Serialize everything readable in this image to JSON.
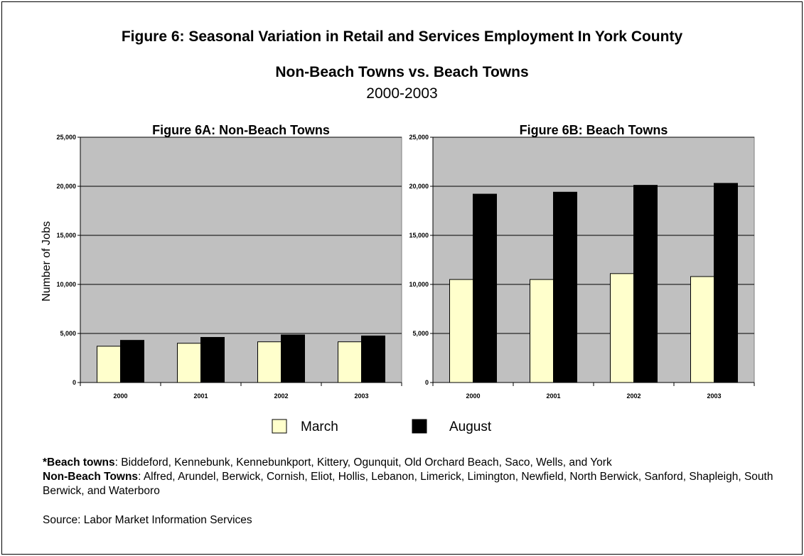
{
  "figure": {
    "title": "Figure 6:  Seasonal Variation in Retail and Services Employment In York County",
    "subtitle": "Non-Beach Towns vs. Beach Towns",
    "years": "2000-2003"
  },
  "colors": {
    "march": "#FFFFCC",
    "august": "#000000",
    "plot_bg": "#C0C0C0",
    "gridline": "#000000"
  },
  "legend": {
    "placement": "bottom-center",
    "march_label": "March",
    "august_label": "August"
  },
  "chart_data": [
    {
      "type": "bar",
      "title": "Figure 6A:  Non-Beach Towns",
      "ylabel": "Number of Jobs",
      "xlabel": "",
      "categories": [
        "2000",
        "2001",
        "2002",
        "2003"
      ],
      "ylim": [
        0,
        25000
      ],
      "yticks": [
        "0",
        "5,000",
        "10,000",
        "15,000",
        "20,000",
        "25,000"
      ],
      "grid": true,
      "series": [
        {
          "name": "March",
          "values": [
            3700,
            4000,
            4150,
            4150
          ]
        },
        {
          "name": "August",
          "values": [
            4300,
            4600,
            4850,
            4750
          ]
        }
      ]
    },
    {
      "type": "bar",
      "title": "Figure 6B:  Beach Towns",
      "ylabel": "",
      "xlabel": "",
      "categories": [
        "2000",
        "2001",
        "2002",
        "2003"
      ],
      "ylim": [
        0,
        25000
      ],
      "yticks": [
        "0",
        "5,000",
        "10,000",
        "15,000",
        "20,000",
        "25,000"
      ],
      "grid": true,
      "series": [
        {
          "name": "March",
          "values": [
            10500,
            10500,
            11100,
            10800
          ]
        },
        {
          "name": "August",
          "values": [
            19200,
            19400,
            20100,
            20300
          ]
        }
      ]
    }
  ],
  "notes": {
    "beach_label": "*Beach towns",
    "beach_text": ":  Biddeford, Kennebunk, Kennebunkport, Kittery, Ogunquit, Old Orchard Beach, Saco, Wells, and York",
    "nonbeach_label": "Non-Beach Towns",
    "nonbeach_text": ":  Alfred, Arundel, Berwick, Cornish, Eliot, Hollis, Lebanon, Limerick, Limington, Newfield, North Berwick, Sanford, Shapleigh, South Berwick, and Waterboro",
    "source": "Source:  Labor Market Information Services"
  }
}
